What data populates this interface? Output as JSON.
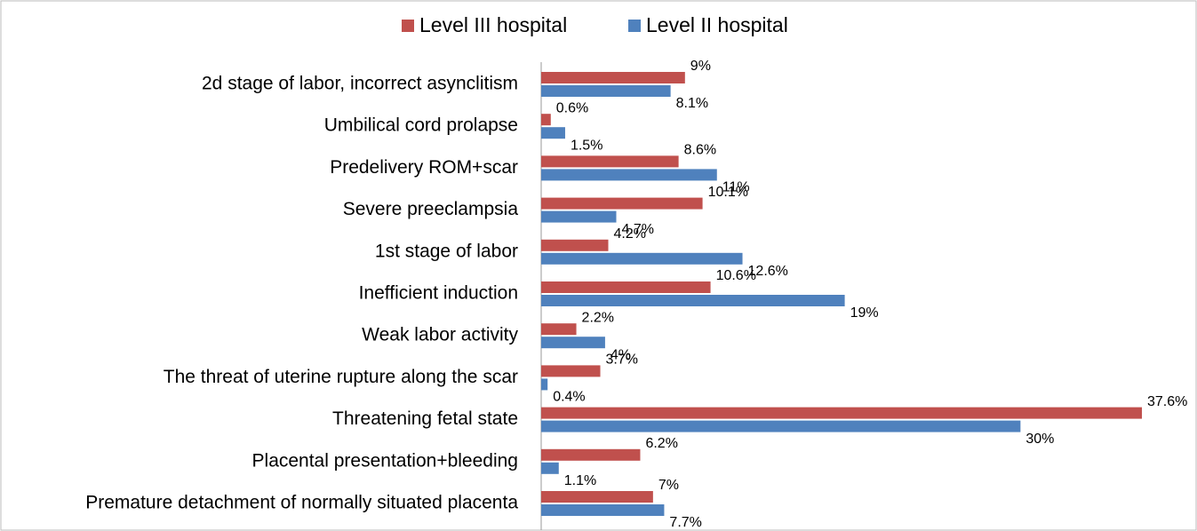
{
  "chart_data": {
    "type": "barh",
    "categories": [
      "2d stage of labor, incorrect asynclitism",
      "Umbilical cord prolapse",
      "Predelivery ROM+scar",
      "Severe preeclampsia",
      "1st stage of labor",
      "Inefficient induction ",
      "Weak labor activity",
      "The threat of uterine rupture along the scar",
      "Threatening fetal state",
      "Placental presentation+bleeding",
      "Premature detachment of normally situated placenta"
    ],
    "series": [
      {
        "name": "Level III hospital",
        "color": "#c0504d",
        "values": [
          9,
          0.6,
          8.6,
          10.1,
          4.2,
          10.6,
          2.2,
          3.7,
          37.6,
          6.2,
          7
        ],
        "value_labels": [
          "9%",
          "0.6%",
          "8.6%",
          "10.1%",
          "4.2%",
          "10.6%",
          "2.2%",
          "3.7%",
          "37.6%",
          "6.2%",
          "7%"
        ]
      },
      {
        "name": "Level II hospital",
        "color": "#4f81bd",
        "values": [
          8.1,
          1.5,
          11,
          4.7,
          12.6,
          19,
          4,
          0.4,
          30,
          1.1,
          7.7
        ],
        "value_labels": [
          "8.1%",
          "1.5%",
          "11%",
          "4.7%",
          "12.6%",
          "19%",
          "4%",
          "0.4%",
          "30%",
          "1.1%",
          "7.7%"
        ]
      }
    ],
    "legend": "top"
  }
}
